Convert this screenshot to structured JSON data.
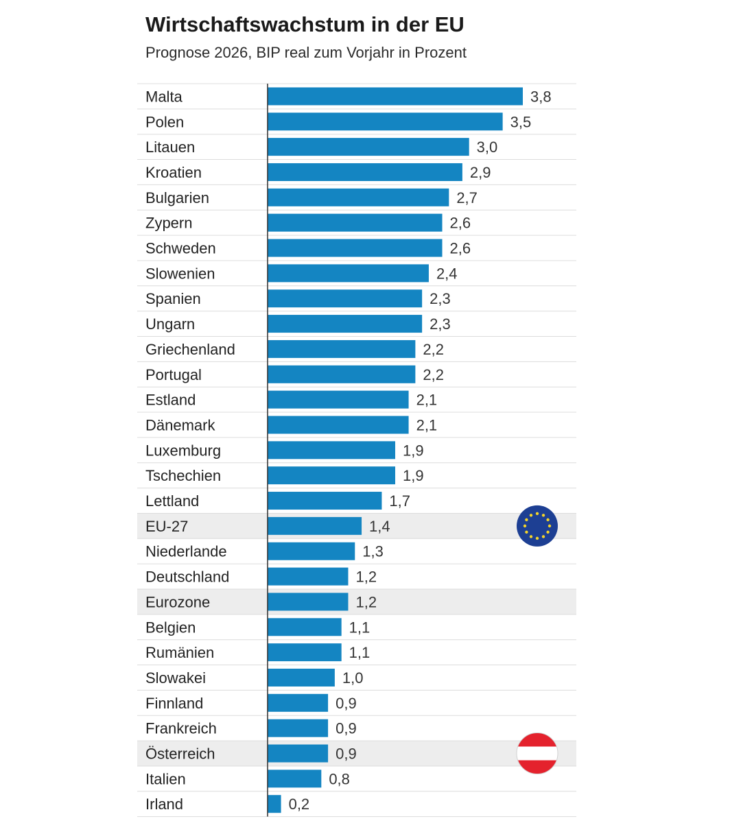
{
  "chart_data": {
    "type": "bar",
    "orientation": "horizontal",
    "title": "Wirtschaftswachstum in der EU",
    "subtitle": "Prognose 2026, BIP real zum Vorjahr in Prozent",
    "categories": [
      "Malta",
      "Polen",
      "Litauen",
      "Kroatien",
      "Bulgarien",
      "Zypern",
      "Schweden",
      "Slowenien",
      "Spanien",
      "Ungarn",
      "Griechenland",
      "Portugal",
      "Estland",
      "Dänemark",
      "Luxemburg",
      "Tschechien",
      "Lettland",
      "EU-27",
      "Niederlande",
      "Deutschland",
      "Eurozone",
      "Belgien",
      "Rumänien",
      "Slowakei",
      "Finnland",
      "Frankreich",
      "Österreich",
      "Italien",
      "Irland"
    ],
    "values": [
      3.8,
      3.5,
      3.0,
      2.9,
      2.7,
      2.6,
      2.6,
      2.4,
      2.3,
      2.3,
      2.2,
      2.2,
      2.1,
      2.1,
      1.9,
      1.9,
      1.7,
      1.4,
      1.3,
      1.2,
      1.2,
      1.1,
      1.1,
      1.0,
      0.9,
      0.9,
      0.9,
      0.8,
      0.2
    ],
    "value_labels": [
      "3,8",
      "3,5",
      "3,0",
      "2,9",
      "2,7",
      "2,6",
      "2,6",
      "2,4",
      "2,3",
      "2,3",
      "2,2",
      "2,2",
      "2,1",
      "2,1",
      "1,9",
      "1,9",
      "1,7",
      "1,4",
      "1,3",
      "1,2",
      "1,2",
      "1,1",
      "1,1",
      "1,0",
      "0,9",
      "0,9",
      "0,9",
      "0,8",
      "0,2"
    ],
    "highlighted_rows": [
      "EU-27",
      "Eurozone",
      "Österreich"
    ],
    "row_icons": {
      "EU-27": "eu-flag-icon",
      "Österreich": "austria-flag-icon"
    },
    "xlim": [
      0,
      3.8
    ],
    "grid": false,
    "legend": "none",
    "colors": {
      "bar": "#1485c2",
      "highlight_row": "#ededed",
      "row_divider": "#dcdcdc",
      "axis": "#2b2b2b",
      "eu_blue": "#1d3f93",
      "eu_star": "#f4d52a",
      "austria_red": "#e4222d"
    }
  }
}
